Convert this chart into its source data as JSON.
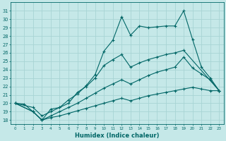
{
  "xlabel": "Humidex (Indice chaleur)",
  "bg_color": "#c5e8e8",
  "grid_color": "#a8d4d4",
  "line_color": "#006666",
  "xlim": [
    -0.5,
    23.5
  ],
  "ylim": [
    17.5,
    32.0
  ],
  "yticks": [
    18,
    19,
    20,
    21,
    22,
    23,
    24,
    25,
    26,
    27,
    28,
    29,
    30,
    31
  ],
  "xticks": [
    0,
    1,
    2,
    3,
    4,
    5,
    6,
    7,
    8,
    9,
    10,
    11,
    12,
    13,
    14,
    15,
    16,
    17,
    18,
    19,
    20,
    21,
    22,
    23
  ],
  "line1_x": [
    0,
    1,
    2,
    3,
    4,
    5,
    6,
    7,
    8,
    9,
    10,
    11,
    12,
    13,
    14,
    15,
    16,
    17,
    18,
    19,
    20,
    21,
    22,
    23
  ],
  "line1_y": [
    20,
    19.9,
    19.0,
    18.0,
    19.3,
    19.5,
    20.4,
    21.1,
    22.1,
    23.4,
    26.2,
    27.5,
    30.3,
    28.1,
    29.2,
    29.0,
    29.1,
    29.2,
    29.2,
    31.0,
    27.6,
    24.3,
    23.0,
    21.5
  ],
  "line2_x": [
    0,
    2,
    3,
    4,
    5,
    6,
    7,
    8,
    9,
    10,
    11,
    12,
    13,
    14,
    15,
    16,
    17,
    18,
    19,
    23
  ],
  "line2_y": [
    20,
    19.5,
    18.5,
    19.0,
    19.5,
    20.0,
    21.3,
    22.0,
    23.0,
    24.5,
    25.2,
    25.8,
    24.3,
    24.8,
    25.2,
    25.5,
    25.8,
    26.0,
    26.3,
    21.5
  ],
  "line3_x": [
    0,
    2,
    3,
    4,
    5,
    6,
    7,
    8,
    9,
    10,
    11,
    12,
    13,
    14,
    15,
    16,
    17,
    18,
    19,
    20,
    21,
    22,
    23
  ],
  "line3_y": [
    20,
    19.0,
    18.0,
    18.5,
    19.0,
    19.5,
    20.0,
    20.6,
    21.2,
    21.8,
    22.3,
    22.8,
    22.3,
    22.8,
    23.3,
    23.7,
    24.0,
    24.3,
    25.5,
    24.2,
    23.5,
    22.8,
    21.5
  ],
  "line4_x": [
    0,
    2,
    3,
    4,
    5,
    6,
    7,
    8,
    9,
    10,
    11,
    12,
    13,
    14,
    15,
    16,
    17,
    18,
    19,
    20,
    21,
    22,
    23
  ],
  "line4_y": [
    20,
    19.0,
    18.0,
    18.3,
    18.5,
    18.8,
    19.1,
    19.4,
    19.7,
    20.0,
    20.3,
    20.6,
    20.3,
    20.6,
    20.9,
    21.1,
    21.3,
    21.5,
    21.7,
    21.9,
    21.7,
    21.5,
    21.5
  ]
}
